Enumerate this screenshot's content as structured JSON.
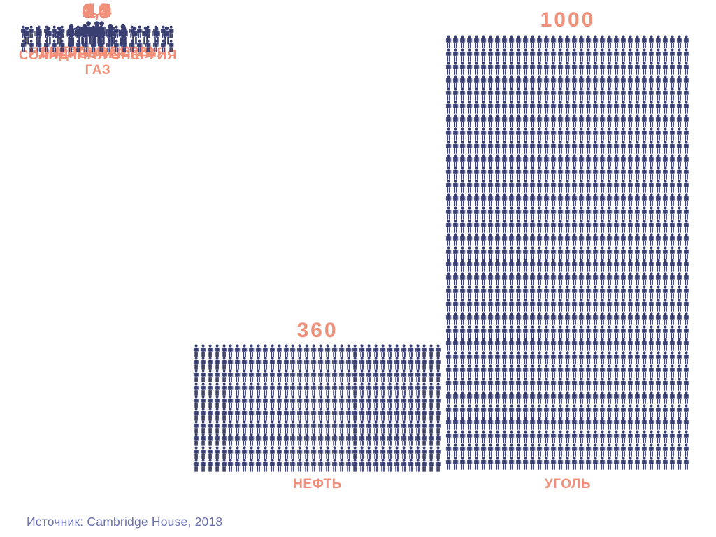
{
  "colors": {
    "accent": "#f0907a",
    "icon": "#3a3f72",
    "source_text": "#6a70ae",
    "background": "#ffffff"
  },
  "source": {
    "text": "Источник: Cambridge House, 2018"
  },
  "chart_data": {
    "type": "pictogram",
    "title": "",
    "categories": [
      "ЯДЕРНАЯ ЭНЕРГИЯ",
      "ЭНЕРГИЯ ВЕТРА",
      "СОЛНЕЧНАЯ ЭНЕРГИЯ",
      "ГИДРОЭНЕРГИЯ",
      "ГАЗ",
      "НЕФТЬ",
      "УГОЛЬ"
    ],
    "values": [
      0.9,
      1.4,
      4.4,
      14,
      40,
      360,
      1000
    ],
    "value_labels": [
      "0,9",
      "1,4",
      "4,4",
      "14",
      "40",
      "360",
      "1000"
    ],
    "icon_unit": "person",
    "legend_position": "none",
    "grid": false,
    "source": "Источник: Cambridge House, 2018"
  },
  "sections": [
    {
      "id": "nuclear",
      "label": "ЯДЕРНАЯ ЭНЕРГИЯ",
      "value_label": "0,9",
      "value": 0.9,
      "less_than_symbol": "<",
      "grid": {
        "cols": 1,
        "rows": 1
      }
    },
    {
      "id": "wind",
      "label": "ЭНЕРГИЯ ВЕТРА",
      "value_label": "1,4",
      "value": 1.4,
      "less_than_symbol": "<",
      "grid": {
        "cols": 2,
        "rows": 1
      }
    },
    {
      "id": "solar",
      "label": "СОЛНЕЧНАЯ ЭНЕРГИЯ",
      "value_label": "4,4",
      "value": 4.4,
      "less_than_symbol": "<",
      "grid": {
        "cols": 5,
        "rows": 1
      }
    },
    {
      "id": "hydro",
      "label": "ГИДРОЭНЕРГИЯ",
      "value_label": "14",
      "value": 14,
      "grid": {
        "cols": 14,
        "rows": 1
      }
    },
    {
      "id": "gas",
      "label": "ГАЗ",
      "value_label": "40",
      "value": 40,
      "grid": {
        "cols": 20,
        "rows": 2
      }
    },
    {
      "id": "oil",
      "label": "НЕФТЬ",
      "value_label": "360",
      "value": 360,
      "grid": {
        "cols": 36,
        "rows": 10
      }
    },
    {
      "id": "coal",
      "label": "УГОЛЬ",
      "value_label": "1000",
      "value": 1000,
      "grid": {
        "cols": 35,
        "rows": 33
      }
    }
  ]
}
